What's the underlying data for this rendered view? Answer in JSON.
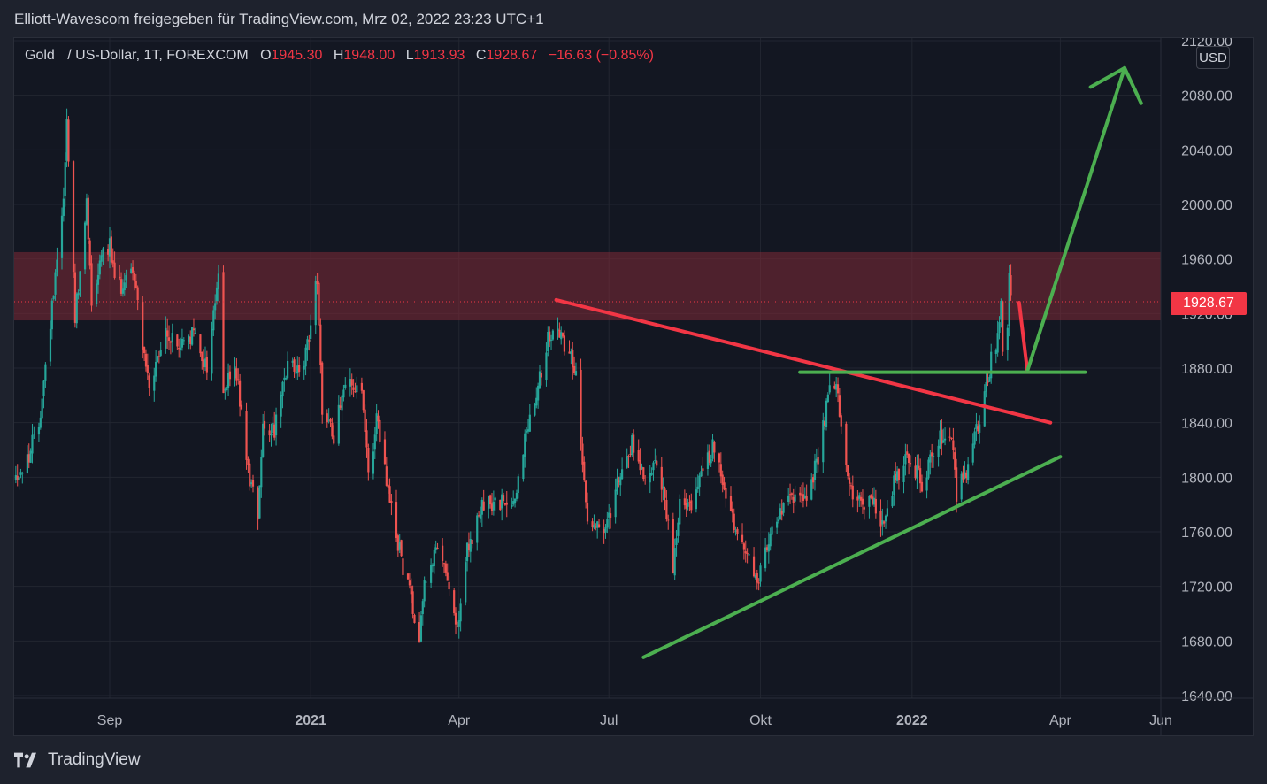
{
  "share_title": "Elliott-Wavescom freigegeben für TradingView.com, Mrz 02, 2022 23:23 UTC+1",
  "legend": {
    "symbol": "Gold",
    "description": "/ US-Dollar, 1T, FOREXCOM",
    "open_label": "O",
    "open": "1945.30",
    "high_label": "H",
    "high": "1948.00",
    "low_label": "L",
    "low": "1913.93",
    "close_label": "C",
    "close": "1928.67",
    "change": "−16.63 (−0.85%)"
  },
  "currency": "USD",
  "last_price_label": "1928.67",
  "brand": "TradingView",
  "colors": {
    "background": "#131722",
    "up": "#26a69a",
    "down": "#ef5350",
    "resistance_zone": "#7f2a36",
    "red_line": "#f23645",
    "green_line": "#4caf50",
    "price_tag": "#f23645"
  },
  "chart_data": {
    "type": "candlestick",
    "symbol": "Gold / US-Dollar",
    "timeframe": "1T",
    "ylim": [
      1640,
      2120
    ],
    "y_ticks": [
      "2120.00",
      "2080.00",
      "2040.00",
      "2000.00",
      "1960.00",
      "1920.00",
      "1880.00",
      "1840.00",
      "1800.00",
      "1760.00",
      "1720.00",
      "1680.00",
      "1640.00"
    ],
    "x_ticks": [
      "Sep",
      "2021",
      "Apr",
      "Jul",
      "Okt",
      "2022",
      "Apr",
      "Jun"
    ],
    "x_tick_dates": [
      "2020-09-01",
      "2021-01-01",
      "2021-04-01",
      "2021-07-01",
      "2021-10-01",
      "2022-01-01",
      "2022-04-01",
      "2022-06-01"
    ],
    "xlim": [
      "2020-07-05",
      "2022-06-01"
    ],
    "price_path": [
      [
        "2020-07-05",
        1800
      ],
      [
        "2020-07-12",
        1808
      ],
      [
        "2020-07-20",
        1840
      ],
      [
        "2020-07-26",
        1900
      ],
      [
        "2020-07-31",
        1965
      ],
      [
        "2020-08-04",
        2005
      ],
      [
        "2020-08-06",
        2062
      ],
      [
        "2020-08-11",
        1920
      ],
      [
        "2020-08-14",
        1945
      ],
      [
        "2020-08-18",
        2000
      ],
      [
        "2020-08-21",
        1930
      ],
      [
        "2020-08-28",
        1970
      ],
      [
        "2020-09-01",
        1970
      ],
      [
        "2020-09-05",
        1935
      ],
      [
        "2020-09-15",
        1955
      ],
      [
        "2020-09-21",
        1900
      ],
      [
        "2020-09-25",
        1862
      ],
      [
        "2020-10-05",
        1905
      ],
      [
        "2020-10-13",
        1895
      ],
      [
        "2020-10-22",
        1905
      ],
      [
        "2020-10-30",
        1880
      ],
      [
        "2020-11-06",
        1950
      ],
      [
        "2020-11-09",
        1860
      ],
      [
        "2020-11-16",
        1885
      ],
      [
        "2020-11-24",
        1805
      ],
      [
        "2020-11-30",
        1775
      ],
      [
        "2020-12-03",
        1840
      ],
      [
        "2020-12-10",
        1835
      ],
      [
        "2020-12-18",
        1880
      ],
      [
        "2020-12-28",
        1880
      ],
      [
        "2021-01-05",
        1948
      ],
      [
        "2021-01-08",
        1850
      ],
      [
        "2021-01-15",
        1830
      ],
      [
        "2021-01-21",
        1870
      ],
      [
        "2021-02-01",
        1860
      ],
      [
        "2021-02-05",
        1800
      ],
      [
        "2021-02-10",
        1842
      ],
      [
        "2021-02-19",
        1775
      ],
      [
        "2021-02-26",
        1735
      ],
      [
        "2021-03-08",
        1685
      ],
      [
        "2021-03-11",
        1725
      ],
      [
        "2021-03-18",
        1745
      ],
      [
        "2021-03-25",
        1730
      ],
      [
        "2021-03-31",
        1685
      ],
      [
        "2021-04-06",
        1745
      ],
      [
        "2021-04-16",
        1780
      ],
      [
        "2021-04-26",
        1780
      ],
      [
        "2021-05-05",
        1785
      ],
      [
        "2021-05-12",
        1835
      ],
      [
        "2021-05-20",
        1875
      ],
      [
        "2021-05-26",
        1905
      ],
      [
        "2021-06-01",
        1905
      ],
      [
        "2021-06-08",
        1890
      ],
      [
        "2021-06-11",
        1875
      ],
      [
        "2021-06-17",
        1775
      ],
      [
        "2021-06-29",
        1760
      ],
      [
        "2021-07-06",
        1800
      ],
      [
        "2021-07-15",
        1825
      ],
      [
        "2021-07-23",
        1800
      ],
      [
        "2021-07-30",
        1815
      ],
      [
        "2021-08-06",
        1765
      ],
      [
        "2021-08-09",
        1730
      ],
      [
        "2021-08-13",
        1780
      ],
      [
        "2021-08-20",
        1780
      ],
      [
        "2021-09-03",
        1825
      ],
      [
        "2021-09-10",
        1790
      ],
      [
        "2021-09-17",
        1755
      ],
      [
        "2021-09-29",
        1725
      ],
      [
        "2021-10-08",
        1760
      ],
      [
        "2021-10-20",
        1785
      ],
      [
        "2021-10-29",
        1785
      ],
      [
        "2021-11-05",
        1815
      ],
      [
        "2021-11-12",
        1865
      ],
      [
        "2021-11-16",
        1865
      ],
      [
        "2021-11-22",
        1808
      ],
      [
        "2021-11-26",
        1790
      ],
      [
        "2021-12-03",
        1782
      ],
      [
        "2021-12-10",
        1780
      ],
      [
        "2021-12-15",
        1765
      ],
      [
        "2021-12-22",
        1800
      ],
      [
        "2021-12-30",
        1815
      ],
      [
        "2022-01-07",
        1795
      ],
      [
        "2022-01-14",
        1820
      ],
      [
        "2022-01-21",
        1835
      ],
      [
        "2022-01-26",
        1820
      ],
      [
        "2022-01-28",
        1788
      ],
      [
        "2022-02-03",
        1805
      ],
      [
        "2022-02-11",
        1845
      ],
      [
        "2022-02-16",
        1870
      ],
      [
        "2022-02-18",
        1885
      ],
      [
        "2022-02-22",
        1900
      ],
      [
        "2022-02-24",
        1935
      ],
      [
        "2022-02-25",
        1888
      ],
      [
        "2022-02-28",
        1910
      ],
      [
        "2022-03-01",
        1945
      ],
      [
        "2022-03-02",
        1929
      ]
    ],
    "annotations": {
      "resistance_zone": {
        "from_price": 1915,
        "to_price": 1965
      },
      "descending_trendline": {
        "start": [
          "2021-05-30",
          1930
        ],
        "end": [
          "2022-03-26",
          1840
        ]
      },
      "ascending_trendline": {
        "start": [
          "2021-07-22",
          1668
        ],
        "end": [
          "2022-04-01",
          1815
        ]
      },
      "breakout_level": {
        "price": 1877,
        "start": "2021-10-25",
        "end": "2022-04-16"
      },
      "projected_pullback": {
        "start": [
          "2022-03-07",
          1928
        ],
        "end": [
          "2022-03-12",
          1878
        ]
      },
      "projected_rally": {
        "start": [
          "2022-03-12",
          1878
        ],
        "end": [
          "2022-05-10",
          2100
        ]
      },
      "last_price_line": 1928.67
    }
  }
}
